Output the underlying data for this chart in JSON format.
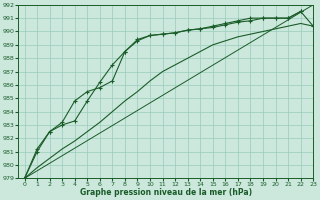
{
  "title": "Graphe pression niveau de la mer (hPa)",
  "bg_color": "#cce8dd",
  "grid_color": "#99ccbb",
  "line_color": "#1a5c28",
  "xlim": [
    -0.5,
    23
  ],
  "ylim": [
    979,
    992
  ],
  "xticks": [
    0,
    1,
    2,
    3,
    4,
    5,
    6,
    7,
    8,
    9,
    10,
    11,
    12,
    13,
    14,
    15,
    16,
    17,
    18,
    19,
    20,
    21,
    22,
    23
  ],
  "yticks": [
    979,
    980,
    981,
    982,
    983,
    984,
    985,
    986,
    987,
    988,
    989,
    990,
    991,
    992
  ],
  "line1_x": [
    0,
    1,
    2,
    3,
    4,
    5,
    6,
    7,
    8,
    9,
    10,
    11,
    12,
    13,
    14,
    15,
    16,
    17,
    18,
    19,
    20,
    21,
    22
  ],
  "line1_y": [
    979.0,
    981.0,
    982.5,
    983.0,
    983.3,
    984.8,
    986.2,
    987.5,
    988.5,
    989.3,
    989.7,
    989.8,
    989.9,
    990.1,
    990.2,
    990.4,
    990.6,
    990.8,
    991.0,
    991.0,
    991.0,
    991.0,
    991.5
  ],
  "line2_x": [
    0,
    1,
    2,
    3,
    4,
    5,
    6,
    7,
    8,
    9,
    10,
    11,
    12,
    13,
    14,
    15,
    16,
    17,
    18,
    19,
    20,
    21,
    22,
    23
  ],
  "line2_y": [
    979.0,
    981.2,
    982.5,
    983.2,
    984.8,
    985.5,
    985.8,
    986.3,
    988.5,
    989.4,
    989.7,
    989.8,
    989.9,
    990.1,
    990.2,
    990.3,
    990.5,
    990.7,
    990.8,
    991.0,
    991.0,
    991.0,
    991.5,
    990.4
  ],
  "line3_x": [
    0,
    1,
    2,
    3,
    4,
    5,
    6,
    7,
    8,
    9,
    10,
    11,
    12,
    13,
    14,
    15,
    16,
    17,
    18,
    19,
    20,
    21,
    22,
    23
  ],
  "line3_y": [
    979.0,
    979.8,
    980.5,
    981.2,
    981.8,
    982.5,
    983.2,
    984.0,
    984.8,
    985.5,
    986.3,
    987.0,
    987.5,
    988.0,
    988.5,
    989.0,
    989.3,
    989.6,
    989.8,
    990.0,
    990.2,
    990.4,
    990.6,
    990.4
  ],
  "line4_x": [
    0,
    23
  ],
  "line4_y": [
    979.0,
    992.0
  ]
}
